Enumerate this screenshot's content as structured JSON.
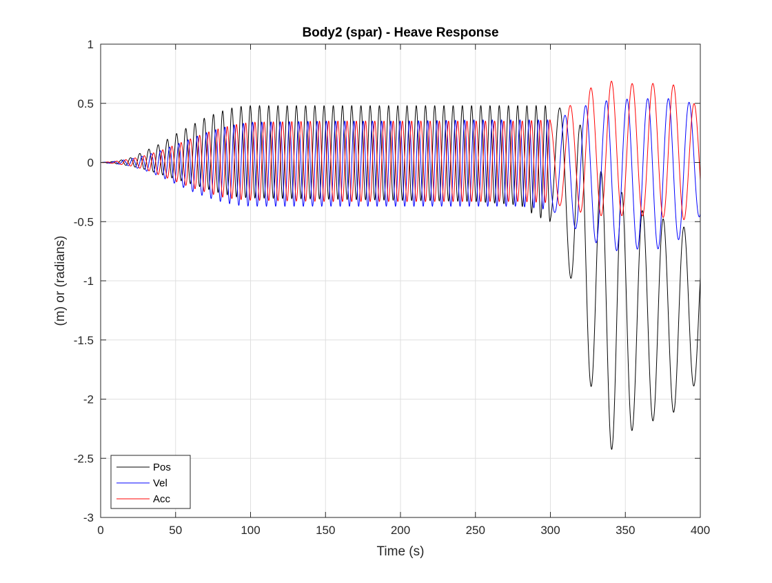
{
  "chart_data": {
    "type": "line",
    "title": "Body2 (spar) - Heave Response",
    "xlabel": "Time (s)",
    "ylabel": "(m) or (radians)",
    "xlim": [
      0,
      400
    ],
    "ylim": [
      -3,
      1
    ],
    "xticks": [
      0,
      50,
      100,
      150,
      200,
      250,
      300,
      350,
      400
    ],
    "yticks": [
      -3,
      -2.5,
      -2,
      -1.5,
      -1,
      -0.5,
      0,
      0.5,
      1
    ],
    "xtick_labels": [
      "0",
      "50",
      "100",
      "150",
      "200",
      "250",
      "300",
      "350",
      "400"
    ],
    "ytick_labels": [
      "-3",
      "-2.5",
      "-2",
      "-1.5",
      "-1",
      "-0.5",
      "0",
      "0.5",
      "1"
    ],
    "grid": true,
    "legend": {
      "location": "bottom-left",
      "entries": [
        "Pos",
        "Vel",
        "Acc"
      ]
    },
    "series": [
      {
        "name": "Pos",
        "color": "#000000",
        "x": [
          0,
          10,
          20,
          30,
          40,
          50,
          60,
          70,
          80,
          90,
          100,
          150,
          200,
          250,
          280,
          290,
          300,
          310,
          318,
          325,
          335,
          345,
          350,
          360,
          370,
          380,
          390,
          400
        ],
        "upper": [
          0,
          0.01,
          0.04,
          0.1,
          0.16,
          0.24,
          0.31,
          0.38,
          0.43,
          0.47,
          0.48,
          0.48,
          0.48,
          0.48,
          0.48,
          0.48,
          0.48,
          0.45,
          0.4,
          0.1,
          -0.1,
          -0.2,
          -0.3,
          -0.4,
          -0.45,
          -0.5,
          -0.55,
          -0.55
        ],
        "lower": [
          0,
          -0.01,
          -0.03,
          -0.06,
          -0.1,
          -0.14,
          -0.18,
          -0.22,
          -0.26,
          -0.29,
          -0.3,
          -0.31,
          -0.32,
          -0.33,
          -0.36,
          -0.45,
          -0.5,
          -0.7,
          -1.35,
          -1.8,
          -2.25,
          -2.55,
          -2.4,
          -2.1,
          -2.2,
          -2.1,
          -2.15,
          -1.7
        ]
      },
      {
        "name": "Vel",
        "color": "#0000ff",
        "x": [
          0,
          10,
          20,
          30,
          40,
          50,
          60,
          70,
          80,
          90,
          100,
          150,
          200,
          250,
          280,
          300,
          310,
          320,
          340,
          360,
          380,
          400
        ],
        "upper": [
          0,
          0.01,
          0.03,
          0.06,
          0.1,
          0.15,
          0.2,
          0.25,
          0.29,
          0.32,
          0.34,
          0.35,
          0.35,
          0.36,
          0.36,
          0.36,
          0.4,
          0.47,
          0.53,
          0.54,
          0.54,
          0.49
        ],
        "lower": [
          0,
          -0.01,
          -0.03,
          -0.07,
          -0.12,
          -0.18,
          -0.24,
          -0.29,
          -0.33,
          -0.36,
          -0.37,
          -0.37,
          -0.37,
          -0.37,
          -0.37,
          -0.4,
          -0.48,
          -0.6,
          -0.75,
          -0.73,
          -0.73,
          -0.45
        ]
      },
      {
        "name": "Acc",
        "color": "#ff0000",
        "x": [
          0,
          10,
          20,
          30,
          40,
          50,
          60,
          70,
          80,
          90,
          100,
          150,
          200,
          250,
          280,
          300,
          310,
          320,
          333,
          345,
          360,
          380,
          400
        ],
        "upper": [
          0,
          0.01,
          0.03,
          0.06,
          0.1,
          0.15,
          0.2,
          0.25,
          0.29,
          0.32,
          0.34,
          0.35,
          0.35,
          0.35,
          0.35,
          0.36,
          0.45,
          0.55,
          0.7,
          0.68,
          0.66,
          0.68,
          0.45
        ],
        "lower": [
          0,
          -0.01,
          -0.03,
          -0.06,
          -0.11,
          -0.16,
          -0.21,
          -0.25,
          -0.29,
          -0.31,
          -0.32,
          -0.33,
          -0.33,
          -0.33,
          -0.33,
          -0.34,
          -0.38,
          -0.42,
          -0.45,
          -0.45,
          -0.45,
          -0.47,
          -0.5
        ]
      }
    ]
  }
}
